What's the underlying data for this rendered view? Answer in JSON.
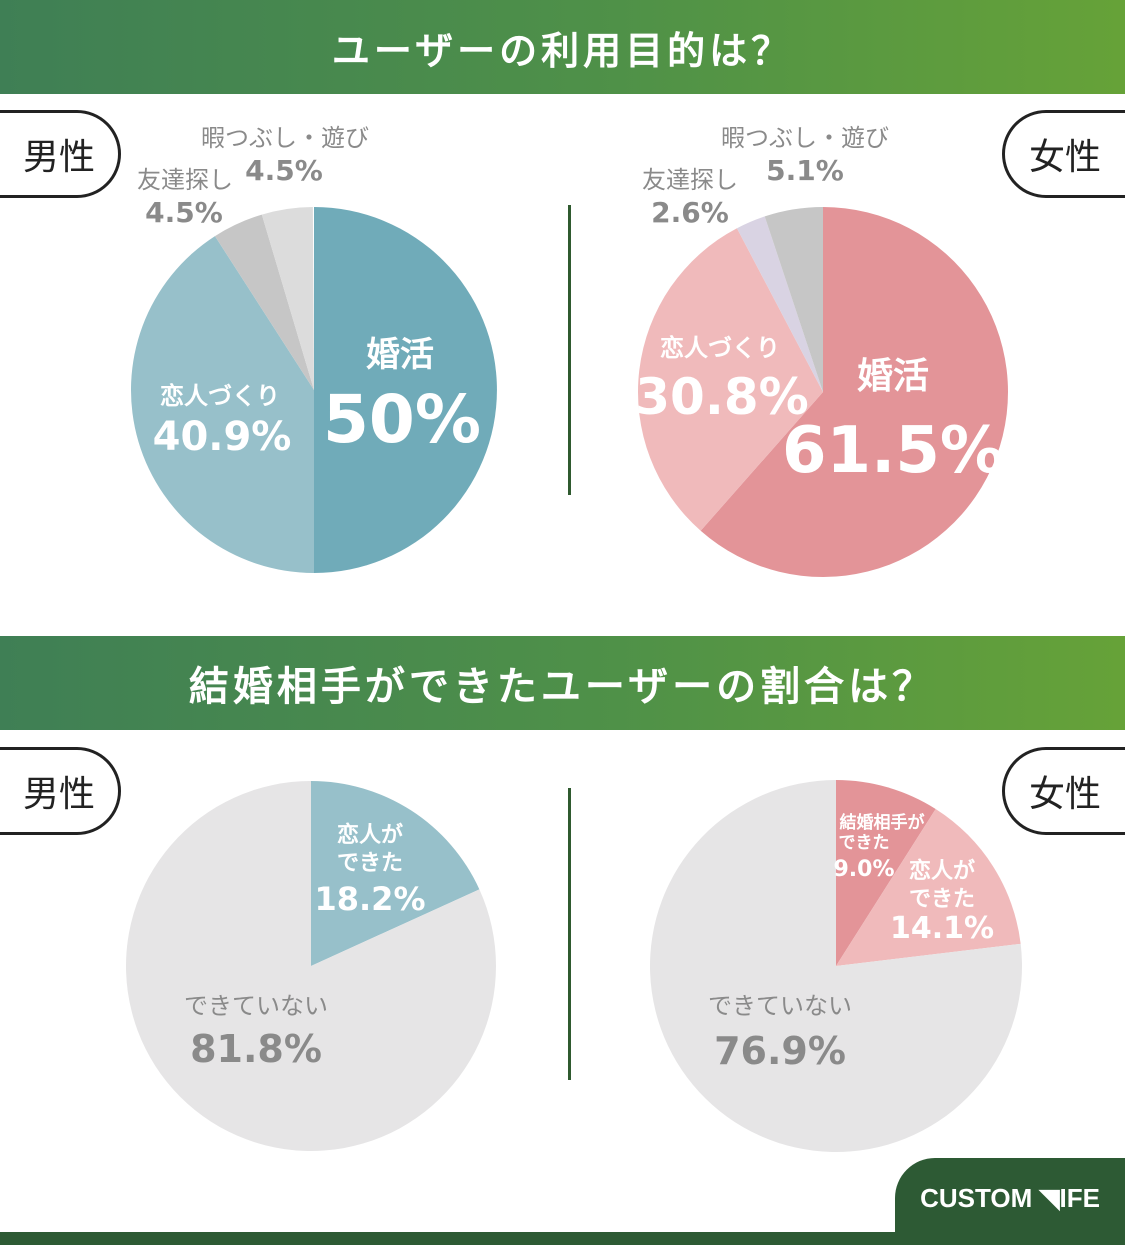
{
  "section1": {
    "title": "ユーザーの利用目的は？"
  },
  "section2": {
    "title": "結婚相手ができたユーザーの割合は？"
  },
  "labels": {
    "male": "男性",
    "female": "女性"
  },
  "logo": {
    "text": "CUSTOM ◥IFE"
  },
  "colors": {
    "banner_start": "#3f7f55",
    "banner_end": "#66a238",
    "male_main": "#70abb9",
    "male_second": "#97c0ca",
    "female_main": "#e39498",
    "female_second": "#f0babb",
    "gray_dark": "#c6c6c6",
    "gray_light": "#dcdcdc",
    "lavender": "#d9d3e3",
    "none_gray": "#e6e5e6",
    "label_gray": "#8a8a8a",
    "footer": "#2d5a34"
  },
  "chart_data": [
    {
      "type": "pie",
      "title": "男性",
      "categories": [
        "婚活",
        "恋人づくり",
        "友達探し",
        "暇つぶし・遊び"
      ],
      "values": [
        50,
        40.9,
        4.5,
        4.5
      ],
      "value_labels": [
        "50%",
        "40.9%",
        "4.5%",
        "4.5%"
      ],
      "colors": [
        "#70abb9",
        "#97c0ca",
        "#c6c6c6",
        "#dcdcdc"
      ]
    },
    {
      "type": "pie",
      "title": "女性",
      "categories": [
        "婚活",
        "恋人づくり",
        "友達探し",
        "暇つぶし・遊び"
      ],
      "values": [
        61.5,
        30.8,
        2.6,
        5.1
      ],
      "value_labels": [
        "61.5%",
        "30.8%",
        "2.6%",
        "5.1%"
      ],
      "colors": [
        "#e39498",
        "#f0babb",
        "#d9d3e3",
        "#c6c6c6"
      ]
    },
    {
      "type": "pie",
      "title": "男性",
      "categories": [
        "恋人ができた",
        "できていない"
      ],
      "category_lines": [
        [
          "恋人が",
          "できた"
        ],
        [
          "できていない"
        ]
      ],
      "values": [
        18.2,
        81.8
      ],
      "value_labels": [
        "18.2%",
        "81.8%"
      ],
      "colors": [
        "#97c0ca",
        "#e6e5e6"
      ]
    },
    {
      "type": "pie",
      "title": "女性",
      "categories": [
        "結婚相手ができた",
        "恋人ができた",
        "できていない"
      ],
      "category_lines": [
        [
          "結婚相手が",
          "できた"
        ],
        [
          "恋人が",
          "できた"
        ],
        [
          "できていない"
        ]
      ],
      "values": [
        9.0,
        14.1,
        76.9
      ],
      "value_labels": [
        "9.0%",
        "14.1%",
        "76.9%"
      ],
      "colors": [
        "#e39498",
        "#f0babb",
        "#e6e5e6"
      ]
    }
  ]
}
